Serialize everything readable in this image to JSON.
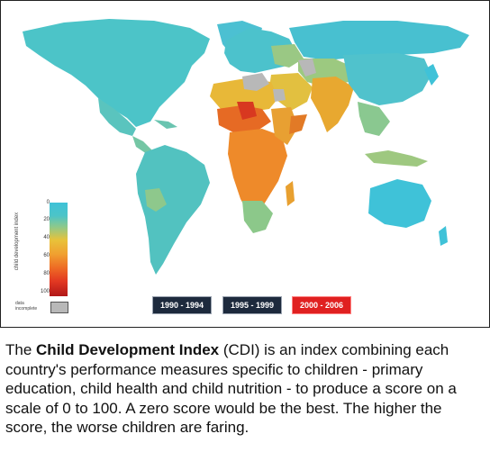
{
  "legend": {
    "title": "child development index",
    "ticks": [
      "0",
      "20",
      "40",
      "60",
      "80",
      "100"
    ],
    "no_data_label": "data incomplete",
    "colors": {
      "low": "#3fc2d8",
      "mid": "#f0a030",
      "high": "#b01818",
      "no_data": "#b8b8b8"
    }
  },
  "periods": [
    {
      "label": "1990 - 1994",
      "color": "#1d2a3d"
    },
    {
      "label": "1995 - 1999",
      "color": "#1d2a3d"
    },
    {
      "label": "2000 - 2006",
      "color": "#e02020"
    }
  ],
  "caption": {
    "prefix": "The ",
    "bold": "Child Development Index",
    "suffix": " (CDI) is an index combining each country's performance measures specific to children - primary education, child health and child nutrition - to produce a score on a scale of 0 to 100. A zero score would be the best. The higher the score, the worse children are faring."
  }
}
